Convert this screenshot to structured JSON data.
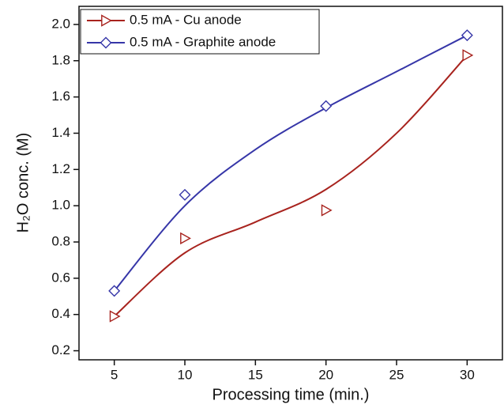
{
  "chart_data": {
    "type": "scatter",
    "x_label": "Processing time (min.)",
    "y_label": "H₂O conc. (M)",
    "x": [
      5,
      10,
      20,
      30
    ],
    "fit_x": [
      5,
      10,
      15,
      20,
      25,
      30
    ],
    "series": [
      {
        "name": "0.5 mA - Cu anode",
        "color": "#a8231e",
        "marker": "triangle-right",
        "values": [
          0.39,
          0.82,
          0.975,
          1.83
        ],
        "fit": [
          0.39,
          0.74,
          0.91,
          1.09,
          1.4,
          1.83
        ]
      },
      {
        "name": "0.5 mA - Graphite anode",
        "color": "#3636a8",
        "marker": "diamond",
        "values": [
          0.53,
          1.06,
          1.55,
          1.94
        ],
        "fit": [
          0.53,
          1.0,
          1.31,
          1.54,
          1.74,
          1.94
        ]
      }
    ],
    "xlim": [
      2.5,
      32.5
    ],
    "ylim": [
      0.15,
      2.1
    ],
    "xticks": [
      5,
      10,
      15,
      20,
      25,
      30
    ],
    "yticks": [
      0.2,
      0.4,
      0.6,
      0.8,
      {
        "value": 1.0,
        "label": "1.0"
      },
      1.2,
      1.4,
      1.6,
      1.8,
      {
        "value": 2.0,
        "label": "2.0"
      }
    ],
    "legend": "upper-left"
  }
}
